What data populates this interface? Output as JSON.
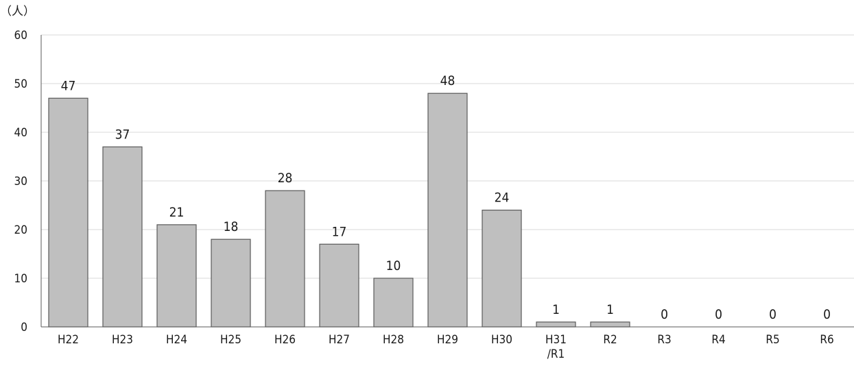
{
  "chart_data": {
    "type": "bar",
    "title": "",
    "ylabel": "（人）",
    "xlabel": "",
    "categories": [
      "H22",
      "H23",
      "H24",
      "H25",
      "H26",
      "H27",
      "H28",
      "H29",
      "H30",
      "H31\n/R1",
      "R2",
      "R3",
      "R4",
      "R5",
      "R6"
    ],
    "series": [
      {
        "values": [
          47,
          37,
          21,
          18,
          28,
          17,
          10,
          48,
          24,
          1,
          1,
          0,
          0,
          0,
          0
        ]
      }
    ],
    "ylim": [
      0,
      60
    ],
    "yticks": [
      0,
      10,
      20,
      30,
      40,
      50,
      60
    ],
    "grid": true,
    "legend": "none",
    "data_labels": true,
    "colors": {
      "bar_fill": "#bfbfbf",
      "bar_stroke": "#595959",
      "grid": "#d9d9d9",
      "axis": "#595959"
    }
  }
}
